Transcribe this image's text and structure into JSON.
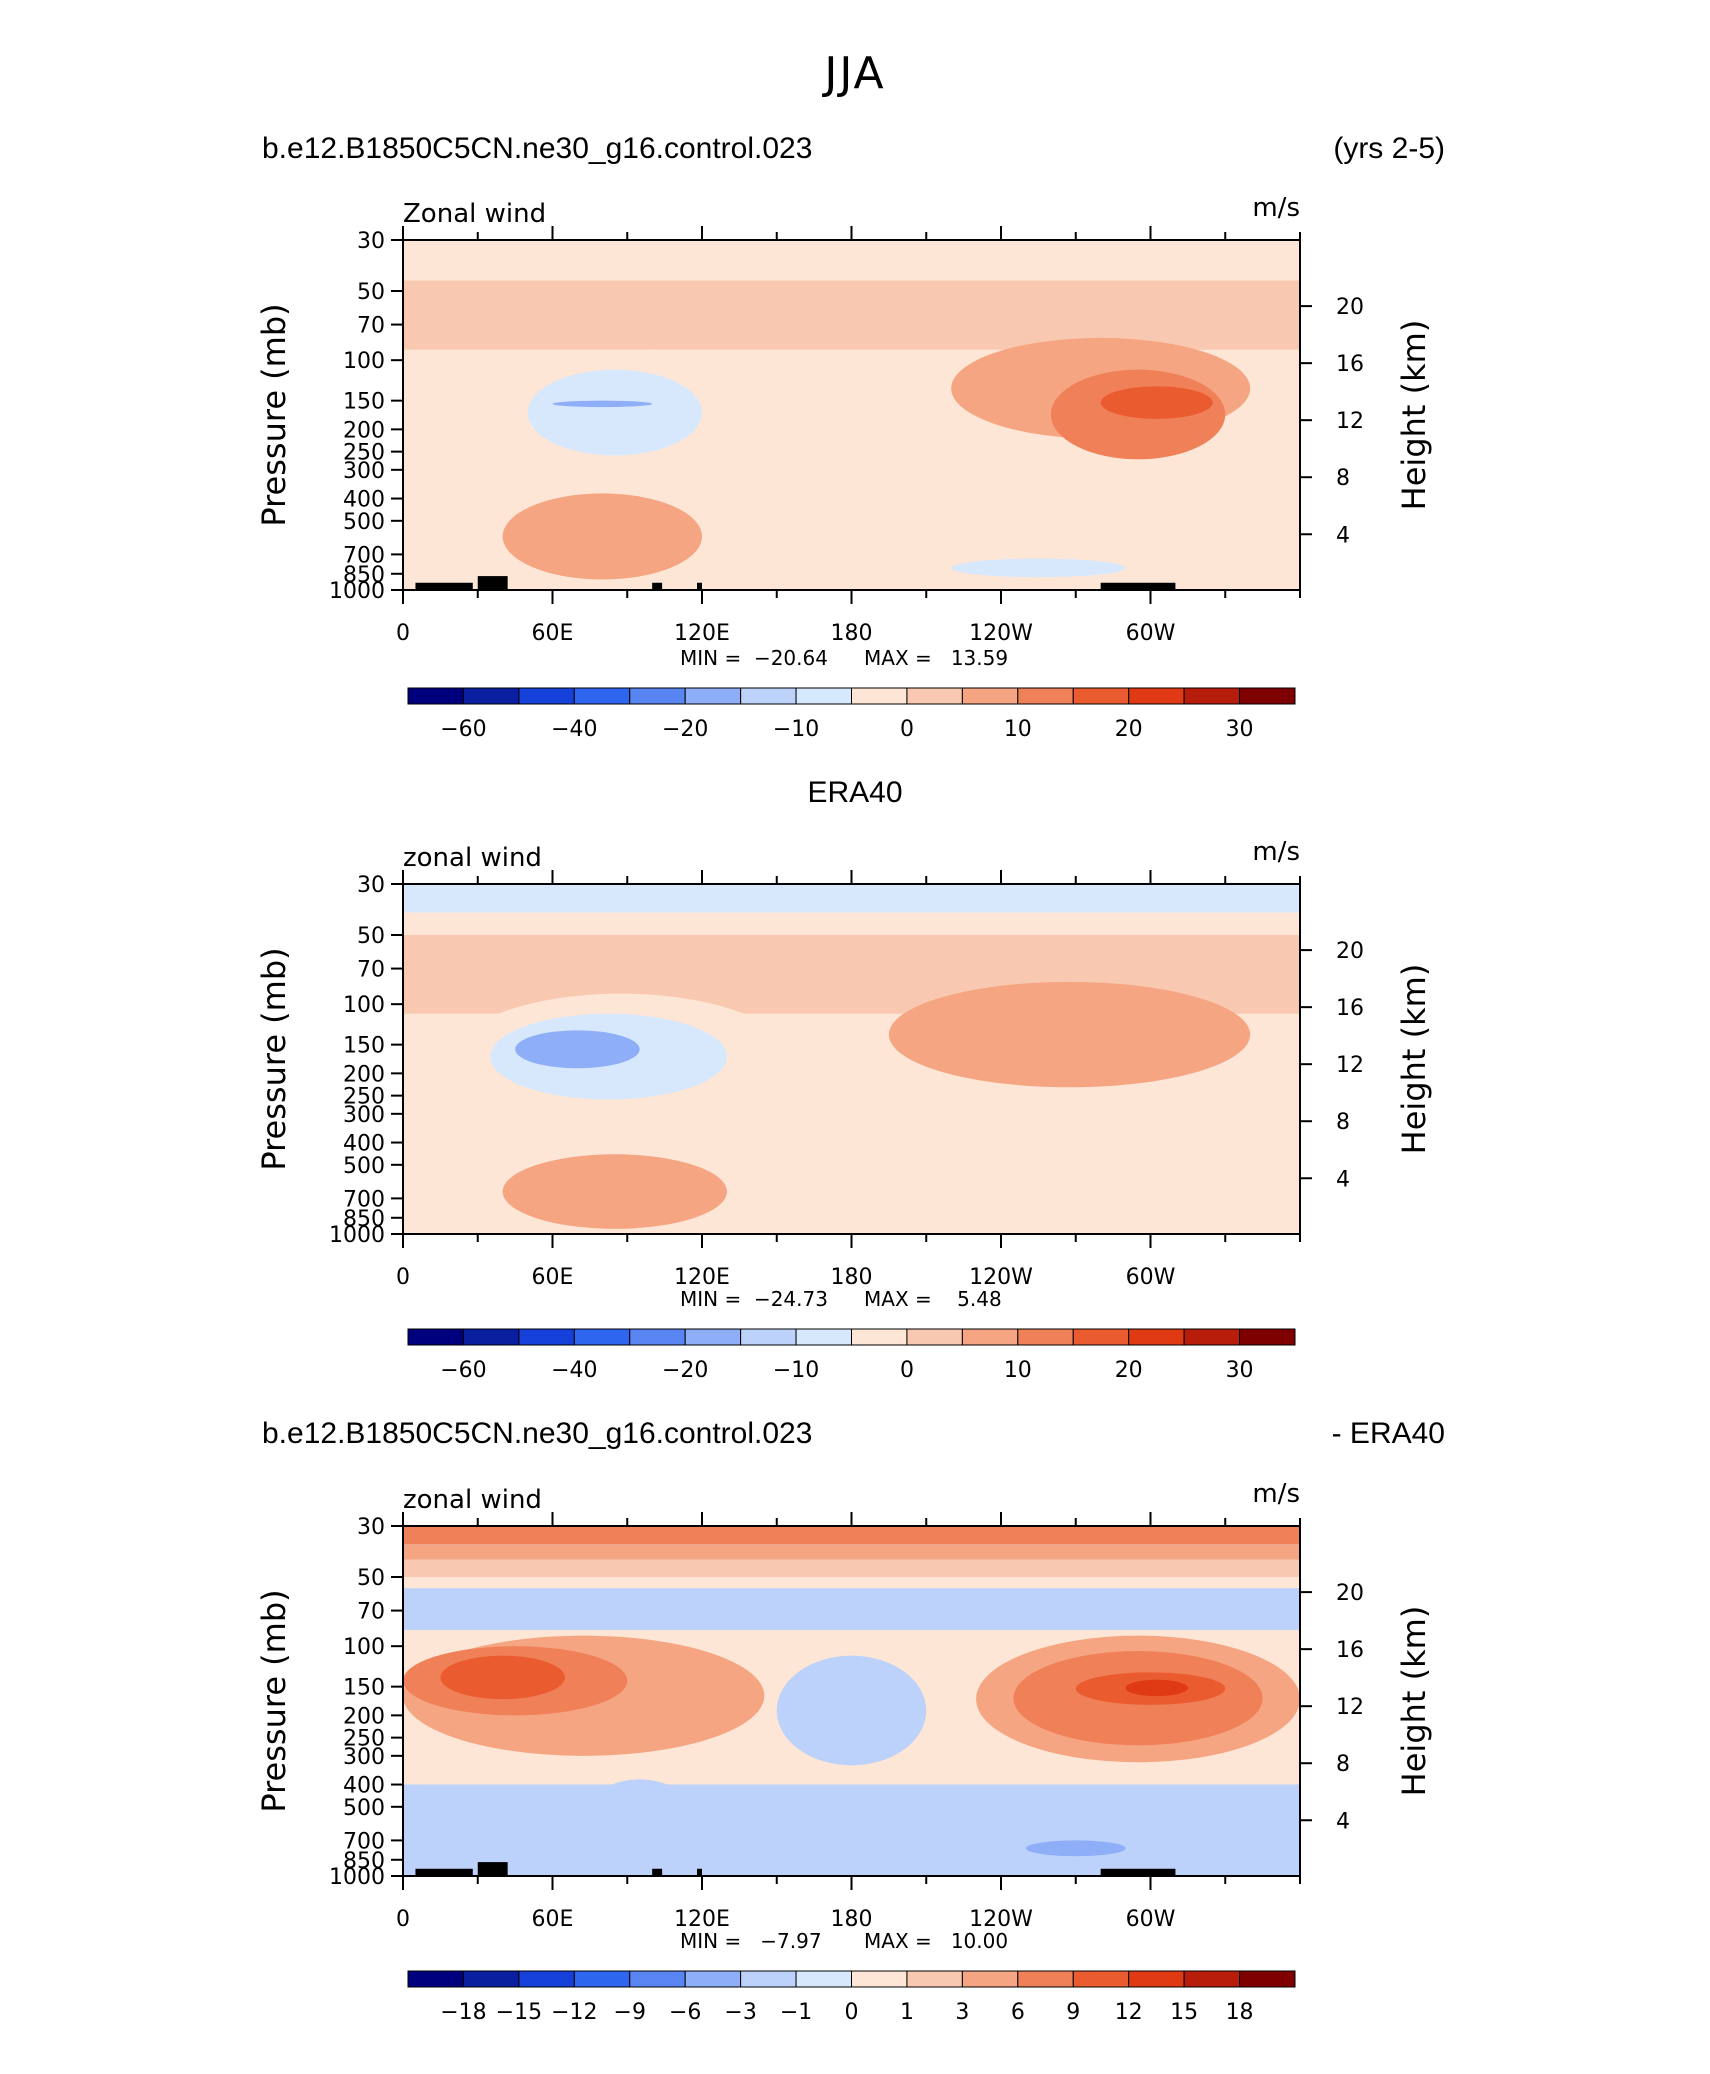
{
  "page_title": "JJA",
  "colors": {
    "blue_scale": [
      "#00007f",
      "#0a1fa0",
      "#1540d9",
      "#2f66ef",
      "#5985f2",
      "#8eaef8",
      "#bcd2fb",
      "#d8e8fc"
    ],
    "red_scale": [
      "#fde6d6",
      "#f9c8b0",
      "#f5a582",
      "#f08058",
      "#ea5b30",
      "#e03a14",
      "#b81d0c",
      "#7f0000"
    ],
    "terrain": "#000000"
  },
  "chart_data": [
    {
      "type": "heatmap",
      "header_left": "b.e12.B1850C5CN.ne30_g16.control.023",
      "header_right": "(yrs 2-5)",
      "variable": "Zonal wind",
      "units": "m/s",
      "ylabel": "Pressure  (mb)",
      "ylabel_right": "Height  (km)",
      "pressure_ticks": [
        "30",
        "50",
        "70",
        "100",
        "150",
        "200",
        "250",
        "300",
        "400",
        "500",
        "700",
        "850",
        "1000"
      ],
      "height_ticks": [
        "20",
        "16",
        "12",
        "8",
        "4"
      ],
      "lon_ticks": [
        "0",
        "60E",
        "120E",
        "180",
        "120W",
        "60W"
      ],
      "min_label": "MIN =  −20.64",
      "max_label": "MAX =   13.59",
      "colorbar_labels": [
        "−60",
        "−40",
        "−20",
        "−10",
        "0",
        "10",
        "20",
        "30"
      ],
      "colorbar_levels": [
        -70,
        -60,
        -50,
        -40,
        -30,
        -20,
        -15,
        -10,
        -5,
        0,
        5,
        10,
        15,
        20,
        25,
        30,
        40
      ],
      "ylim": [
        1000,
        30
      ],
      "xlim": [
        0,
        360
      ],
      "blobs": [
        {
          "x": [
            60,
            140
          ],
          "p": [
            90,
            330
          ],
          "v": -5
        },
        {
          "x": [
            50,
            120
          ],
          "p": [
            110,
            260
          ],
          "v": -10
        },
        {
          "x": [
            60,
            100
          ],
          "p": [
            150,
            160
          ],
          "v": -20
        },
        {
          "x": [
            220,
            340
          ],
          "p": [
            80,
            220
          ],
          "v": 5
        },
        {
          "x": [
            260,
            330
          ],
          "p": [
            110,
            270
          ],
          "v": 10
        },
        {
          "x": [
            280,
            325
          ],
          "p": [
            130,
            180
          ],
          "v": 15
        },
        {
          "x": [
            40,
            120
          ],
          "p": [
            380,
            900
          ],
          "v": 5
        },
        {
          "x": [
            220,
            290
          ],
          "p": [
            730,
            880
          ],
          "v": -10
        }
      ]
    },
    {
      "type": "heatmap",
      "center_title": "ERA40",
      "variable": "zonal wind",
      "units": "m/s",
      "ylabel": "Pressure  (mb)",
      "ylabel_right": "Height  (km)",
      "pressure_ticks": [
        "30",
        "50",
        "70",
        "100",
        "150",
        "200",
        "250",
        "300",
        "400",
        "500",
        "700",
        "850",
        "1000"
      ],
      "height_ticks": [
        "20",
        "16",
        "12",
        "8",
        "4"
      ],
      "lon_ticks": [
        "0",
        "60E",
        "120E",
        "180",
        "120W",
        "60W"
      ],
      "min_label": "MIN =  −24.73",
      "max_label": "MAX =    5.48",
      "colorbar_labels": [
        "−60",
        "−40",
        "−20",
        "−10",
        "0",
        "10",
        "20",
        "30"
      ],
      "colorbar_levels": [
        -70,
        -60,
        -50,
        -40,
        -30,
        -20,
        -15,
        -10,
        -5,
        0,
        5,
        10,
        15,
        20,
        25,
        30,
        40
      ],
      "ylim": [
        1000,
        30
      ],
      "xlim": [
        0,
        360
      ],
      "blobs": [
        {
          "x": [
            20,
            155
          ],
          "p": [
            90,
            320
          ],
          "v": -5
        },
        {
          "x": [
            35,
            130
          ],
          "p": [
            110,
            260
          ],
          "v": -10
        },
        {
          "x": [
            45,
            95
          ],
          "p": [
            130,
            190
          ],
          "v": -20
        },
        {
          "x": [
            195,
            340
          ],
          "p": [
            80,
            230
          ],
          "v": 5
        },
        {
          "x": [
            40,
            130
          ],
          "p": [
            450,
            950
          ],
          "v": 5
        }
      ]
    },
    {
      "type": "heatmap",
      "header_left": "b.e12.B1850C5CN.ne30_g16.control.023",
      "header_right": "- ERA40",
      "variable": "zonal wind",
      "units": "m/s",
      "ylabel": "Pressure  (mb)",
      "ylabel_right": "Height  (km)",
      "pressure_ticks": [
        "30",
        "50",
        "70",
        "100",
        "150",
        "200",
        "250",
        "300",
        "400",
        "500",
        "700",
        "850",
        "1000"
      ],
      "height_ticks": [
        "20",
        "16",
        "12",
        "8",
        "4"
      ],
      "lon_ticks": [
        "0",
        "60E",
        "120E",
        "180",
        "120W",
        "60W"
      ],
      "min_label": "MIN =   −7.97",
      "max_label": "MAX =   10.00",
      "colorbar_labels": [
        "−18",
        "−15",
        "−12",
        "−9",
        "−6",
        "−3",
        "−1",
        "0",
        "1",
        "3",
        "6",
        "9",
        "12",
        "15",
        "18"
      ],
      "colorbar_levels": [
        -21,
        -18,
        -15,
        -12,
        -9,
        -6,
        -3,
        -1,
        0,
        1,
        3,
        6,
        9,
        12,
        15,
        18,
        21
      ],
      "ylim": [
        1000,
        30
      ],
      "xlim": [
        0,
        360
      ],
      "blobs": [
        {
          "x": [
            0,
            145
          ],
          "p": [
            90,
            300
          ],
          "v": 3
        },
        {
          "x": [
            0,
            90
          ],
          "p": [
            100,
            200
          ],
          "v": 6
        },
        {
          "x": [
            15,
            65
          ],
          "p": [
            110,
            170
          ],
          "v": 9
        },
        {
          "x": [
            230,
            360
          ],
          "p": [
            90,
            320
          ],
          "v": 3
        },
        {
          "x": [
            245,
            345
          ],
          "p": [
            105,
            270
          ],
          "v": 6
        },
        {
          "x": [
            270,
            330
          ],
          "p": [
            130,
            180
          ],
          "v": 9
        },
        {
          "x": [
            290,
            315
          ],
          "p": [
            140,
            165
          ],
          "v": 12
        },
        {
          "x": [
            150,
            210
          ],
          "p": [
            110,
            330
          ],
          "v": -3
        },
        {
          "x": [
            75,
            115
          ],
          "p": [
            380,
            700
          ],
          "v": -3
        },
        {
          "x": [
            220,
            300
          ],
          "p": [
            680,
            880
          ],
          "v": -3
        },
        {
          "x": [
            250,
            290
          ],
          "p": [
            700,
            820
          ],
          "v": -6
        },
        {
          "x": [
            80,
            220
          ],
          "p": [
            58,
            80
          ],
          "v": -3
        }
      ]
    }
  ]
}
